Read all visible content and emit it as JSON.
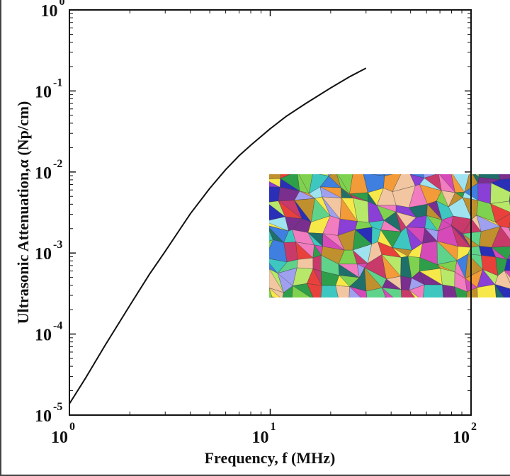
{
  "chart_data": {
    "type": "line",
    "title": "",
    "xlabel": "Frequency, f (MHz)",
    "ylabel": "Ultrasonic Attenuation,α (Np/cm)",
    "xscale": "log",
    "yscale": "log",
    "xlim": [
      1,
      100
    ],
    "ylim": [
      1e-05,
      1
    ],
    "grid": false,
    "line_color": "#111111",
    "x_ticks": [
      {
        "base": "10",
        "exp": "0",
        "value": 1
      },
      {
        "base": "10",
        "exp": "1",
        "value": 10
      },
      {
        "base": "10",
        "exp": "2",
        "value": 100
      }
    ],
    "y_ticks": [
      {
        "base": "10",
        "exp": "-5",
        "value": 1e-05
      },
      {
        "base": "10",
        "exp": "-4",
        "value": 0.0001
      },
      {
        "base": "10",
        "exp": "-3",
        "value": 0.001
      },
      {
        "base": "10",
        "exp": "-2",
        "value": 0.01
      },
      {
        "base": "10",
        "exp": "-1",
        "value": 0.1
      },
      {
        "base": "10",
        "exp": "0",
        "value": 1
      }
    ],
    "series": [
      {
        "x": [
          1.0,
          1.2,
          1.5,
          2.0,
          2.5,
          3.0,
          4.0,
          5.0,
          6.0,
          7.0,
          8.0,
          10.0,
          12.0,
          15.0,
          20.0,
          25.0,
          30.0
        ],
        "y": [
          1.38e-05,
          2.83e-05,
          7.16e-05,
          0.000226,
          0.000544,
          0.00105,
          0.00305,
          0.00628,
          0.0107,
          0.0159,
          0.0214,
          0.0342,
          0.0485,
          0.0698,
          0.109,
          0.151,
          0.191
        ]
      }
    ],
    "inset": {
      "kind": "polycrystalline-grain-map",
      "colors": [
        "#e8413c",
        "#f29b38",
        "#f7e84a",
        "#7fd24f",
        "#2f9e4a",
        "#3ec7c0",
        "#3e7fe0",
        "#2a2fb8",
        "#8a3fd6",
        "#d54ab8",
        "#f27cc0",
        "#b7e86a",
        "#9fe3f0",
        "#c0902f",
        "#7a2f8f",
        "#1f6f6a",
        "#f2c6a0",
        "#5fd38a",
        "#c83a6a",
        "#a0a0f0"
      ]
    }
  }
}
